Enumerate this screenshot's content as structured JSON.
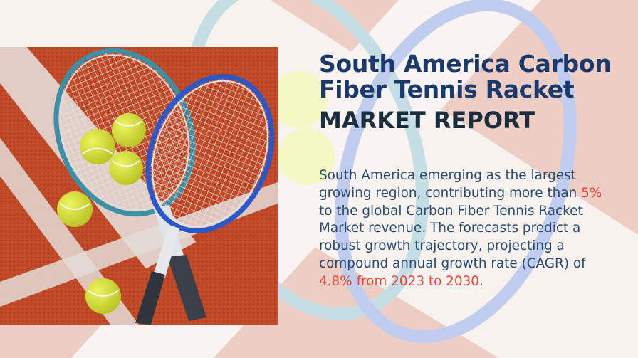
{
  "report": {
    "title": "South America Carbon Fiber Tennis Racket",
    "subtitle": "MARKET REPORT"
  },
  "description": {
    "part1": "South America emerging as the largest growing region, contributing more than ",
    "highlight1": "5%",
    "part2": " to the global Carbon Fiber Tennis Racket Market revenue. The forecasts predict a robust growth trajectory, projecting a compound annual growth rate (CAGR) of ",
    "highlight2": "4.8% from 2023 to 2030",
    "part3": "."
  },
  "colors": {
    "title": "#1b3a6b",
    "subtitle": "#1a2e3d",
    "body_text": "#2a4a6e",
    "highlight": "#e24a3c",
    "court_clay": "#c04a28",
    "ball": "#d9e63a",
    "racket_blue": "#2c57c9",
    "racket_teal": "#3d8fa6"
  }
}
